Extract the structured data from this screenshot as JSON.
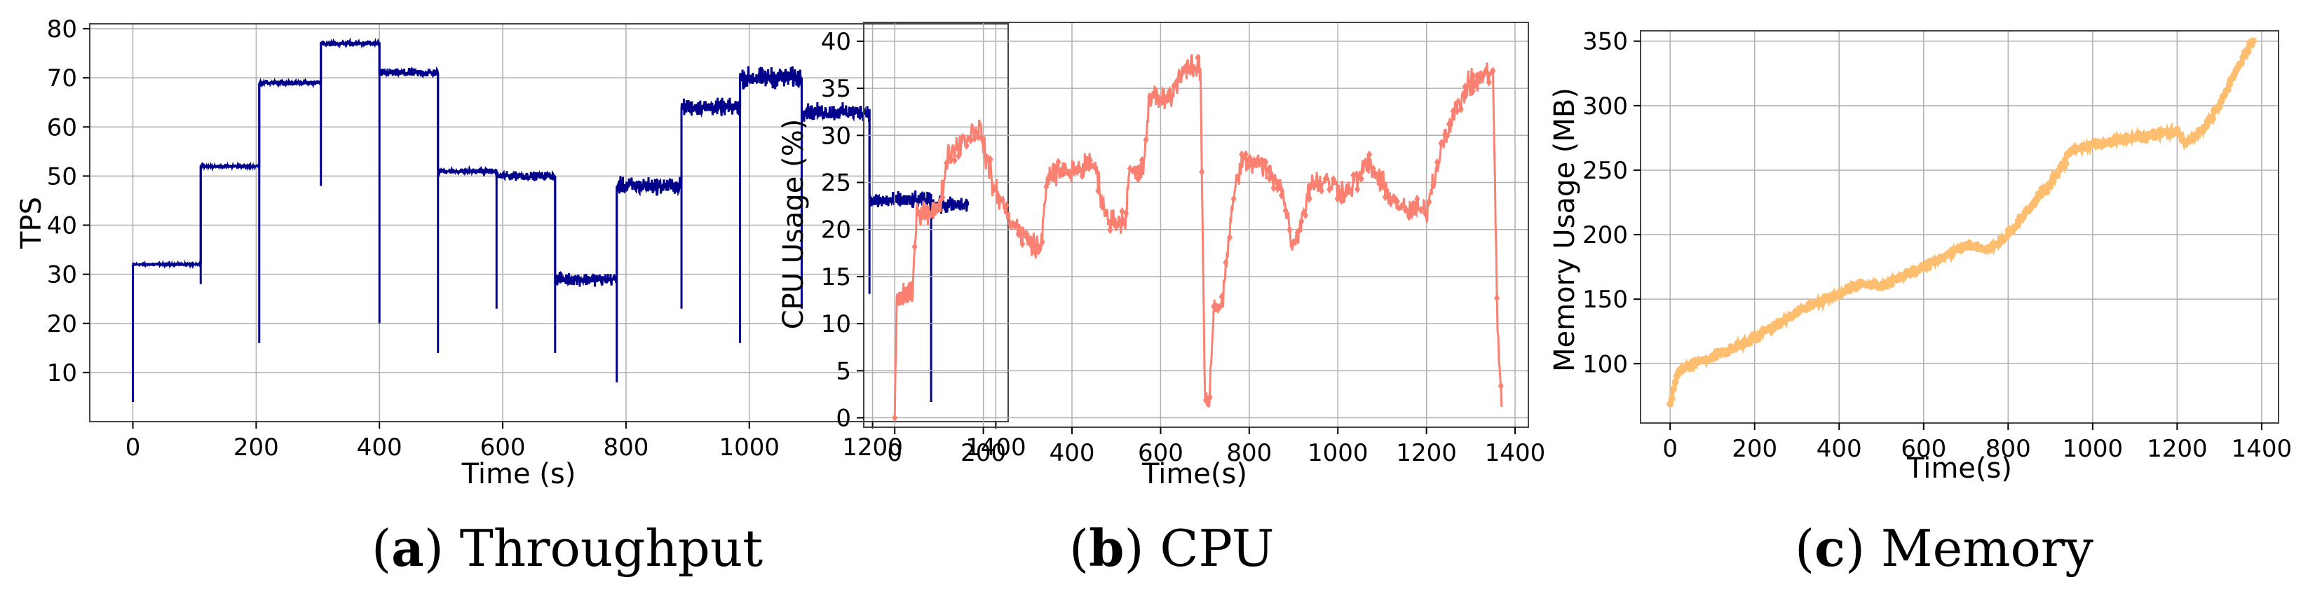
{
  "chart_data": [
    {
      "id": "a",
      "type": "line",
      "caption_letter": "a",
      "caption_text": "Throughput",
      "xlabel": "Time (s)",
      "ylabel": "TPS",
      "xlim": [
        -70,
        1420
      ],
      "ylim": [
        0,
        81
      ],
      "xticks": [
        0,
        200,
        400,
        600,
        800,
        1000,
        1200,
        1400
      ],
      "yticks": [
        10,
        20,
        30,
        40,
        50,
        60,
        70,
        80
      ],
      "grid": true,
      "line_color": "#00008b",
      "noise": 1.2,
      "series": [
        {
          "name": "TPS",
          "segments": [
            {
              "x0": 0,
              "x1": 110,
              "level": 32,
              "noise": 0.2
            },
            {
              "x0": 110,
              "x1": 205,
              "level": 52,
              "noise": 0.3
            },
            {
              "x0": 205,
              "x1": 305,
              "level": 69,
              "noise": 0.6
            },
            {
              "x0": 305,
              "x1": 400,
              "level": 77,
              "noise": 0.6
            },
            {
              "x0": 400,
              "x1": 495,
              "level": 71,
              "noise": 1.0
            },
            {
              "x0": 495,
              "x1": 590,
              "level": 51,
              "noise": 0.6
            },
            {
              "x0": 590,
              "x1": 685,
              "level": 50,
              "noise": 1.0
            },
            {
              "x0": 685,
              "x1": 785,
              "level": 29,
              "noise": 1.5
            },
            {
              "x0": 785,
              "x1": 890,
              "level": 48,
              "noise": 2.0
            },
            {
              "x0": 890,
              "x1": 985,
              "level": 64,
              "noise": 2.0
            },
            {
              "x0": 985,
              "x1": 1085,
              "level": 70,
              "noise": 2.5
            },
            {
              "x0": 1085,
              "x1": 1195,
              "level": 63,
              "noise": 2.0
            },
            {
              "x0": 1195,
              "x1": 1295,
              "level": 45,
              "noise": 2.0
            },
            {
              "x0": 1295,
              "x1": 1355,
              "level": 44,
              "noise": 2.0
            }
          ],
          "dips": [
            [
              0,
              4
            ],
            [
              110,
              28
            ],
            [
              205,
              16
            ],
            [
              305,
              48
            ],
            [
              400,
              20
            ],
            [
              495,
              14
            ],
            [
              590,
              23
            ],
            [
              685,
              14
            ],
            [
              785,
              8
            ],
            [
              890,
              23
            ],
            [
              985,
              16
            ],
            [
              1085,
              23
            ],
            [
              1195,
              26
            ],
            [
              1295,
              4
            ]
          ]
        }
      ]
    },
    {
      "id": "b",
      "type": "line",
      "caption_letter": "b",
      "caption_text": "CPU",
      "xlabel": "Time(s)",
      "ylabel": "CPU Usage (%)",
      "xlim": [
        -70,
        1430
      ],
      "ylim": [
        -1,
        42
      ],
      "xticks": [
        0,
        200,
        400,
        600,
        800,
        1000,
        1200,
        1400
      ],
      "yticks": [
        0,
        5,
        10,
        15,
        20,
        25,
        30,
        35,
        40
      ],
      "grid": true,
      "line_color": "#fa8072",
      "marker": "diamond",
      "series": [
        {
          "name": "CPU Usage",
          "anchors": [
            [
              0,
              1
            ],
            [
              5,
              13
            ],
            [
              40,
              13
            ],
            [
              50,
              22
            ],
            [
              100,
              22
            ],
            [
              120,
              28
            ],
            [
              190,
              31
            ],
            [
              220,
              25
            ],
            [
              260,
              21
            ],
            [
              300,
              19
            ],
            [
              330,
              18
            ],
            [
              345,
              26
            ],
            [
              380,
              26
            ],
            [
              450,
              27
            ],
            [
              480,
              21
            ],
            [
              520,
              21
            ],
            [
              530,
              26
            ],
            [
              560,
              26
            ],
            [
              575,
              34
            ],
            [
              620,
              34
            ],
            [
              650,
              37
            ],
            [
              690,
              37
            ],
            [
              700,
              2
            ],
            [
              710,
              2
            ],
            [
              720,
              12
            ],
            [
              740,
              12
            ],
            [
              760,
              22
            ],
            [
              780,
              27
            ],
            [
              820,
              27
            ],
            [
              870,
              25
            ],
            [
              900,
              18
            ],
            [
              940,
              25
            ],
            [
              980,
              25
            ],
            [
              1020,
              24
            ],
            [
              1070,
              27
            ],
            [
              1110,
              24
            ],
            [
              1150,
              22
            ],
            [
              1200,
              22
            ],
            [
              1240,
              30
            ],
            [
              1290,
              35
            ],
            [
              1350,
              37
            ],
            [
              1360,
              10
            ],
            [
              1370,
              1
            ]
          ],
          "noise": 2.0
        }
      ]
    },
    {
      "id": "c",
      "type": "scatter",
      "caption_letter": "c",
      "caption_text": "Memory",
      "xlabel": "Time(s)",
      "ylabel": "Memory Usage (MB)",
      "xlim": [
        -70,
        1440
      ],
      "ylim": [
        54,
        358
      ],
      "xticks": [
        0,
        200,
        400,
        600,
        800,
        1000,
        1200,
        1400
      ],
      "yticks": [
        100,
        150,
        200,
        250,
        300,
        350
      ],
      "grid": true,
      "line_color": "#fdbf6f",
      "series": [
        {
          "name": "Memory Usage",
          "anchors": [
            [
              0,
              68
            ],
            [
              20,
              95
            ],
            [
              100,
              105
            ],
            [
              200,
              120
            ],
            [
              300,
              140
            ],
            [
              400,
              155
            ],
            [
              460,
              162
            ],
            [
              500,
              160
            ],
            [
              600,
              175
            ],
            [
              700,
              192
            ],
            [
              750,
              188
            ],
            [
              800,
              200
            ],
            [
              900,
              240
            ],
            [
              950,
              265
            ],
            [
              1000,
              270
            ],
            [
              1100,
              275
            ],
            [
              1200,
              280
            ],
            [
              1220,
              270
            ],
            [
              1260,
              282
            ],
            [
              1300,
              300
            ],
            [
              1330,
              320
            ],
            [
              1360,
              340
            ],
            [
              1380,
              350
            ]
          ],
          "noise": 4.0
        }
      ]
    }
  ]
}
